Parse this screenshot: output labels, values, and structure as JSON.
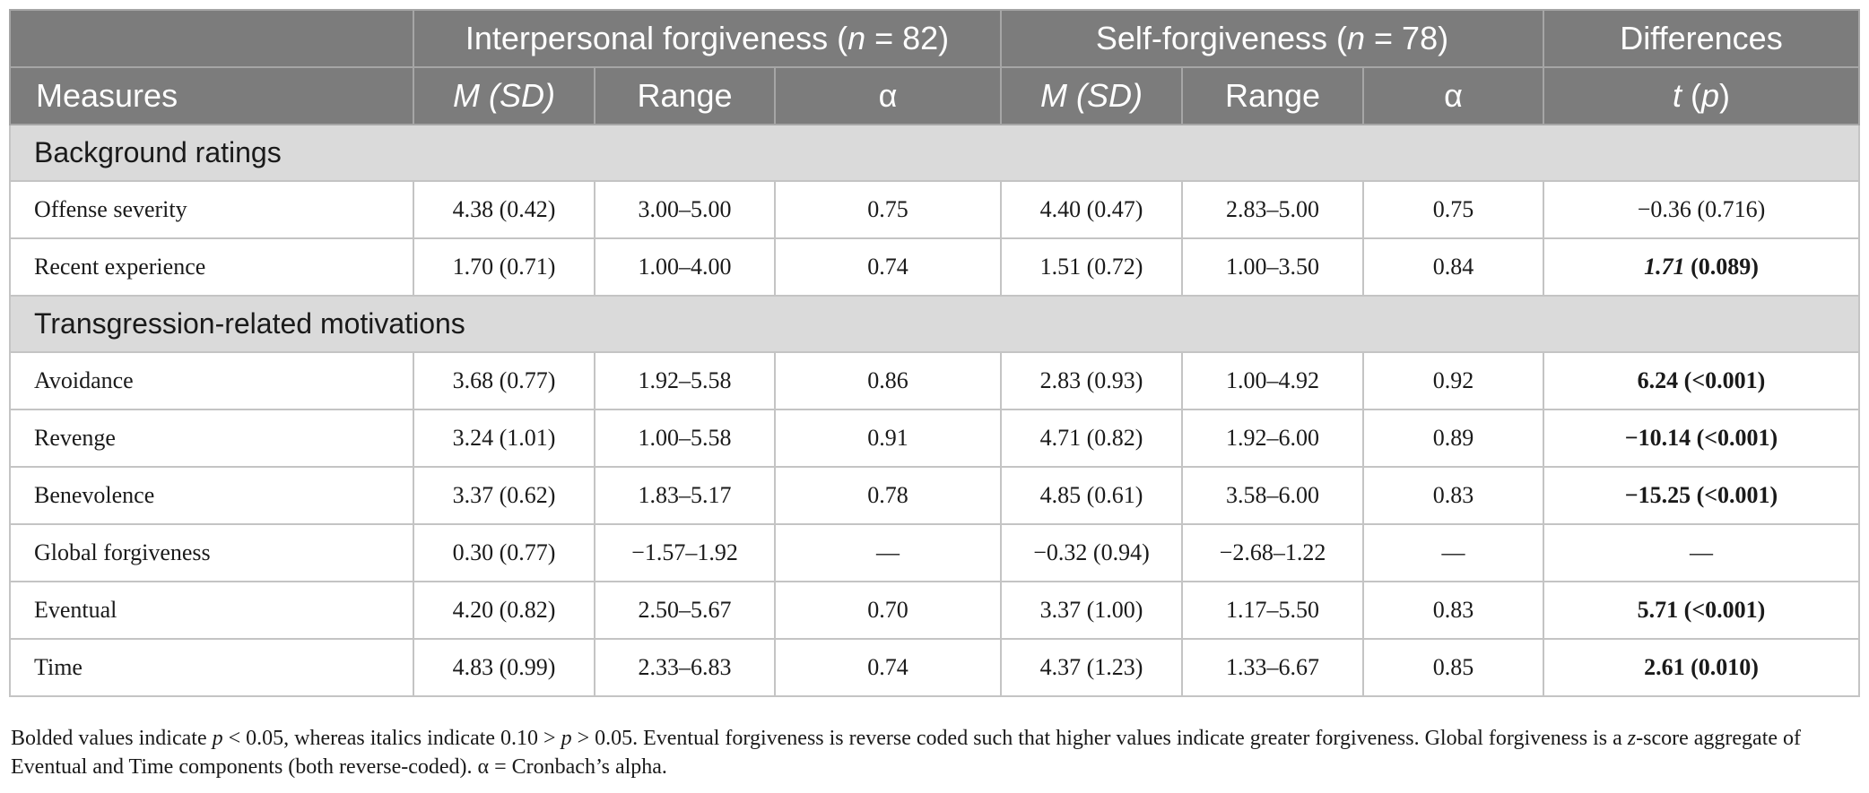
{
  "header": {
    "groups": {
      "interpersonal_prefix": "Interpersonal forgiveness (",
      "interpersonal_n": "n",
      "interpersonal_suffix": " = 82)",
      "self_prefix": "Self-forgiveness (",
      "self_n": "n",
      "self_suffix": " = 78)",
      "differences": "Differences"
    },
    "columns": {
      "measures": "Measures",
      "m_sd_1": "M (SD)",
      "range_1": "Range",
      "alpha_1": "α",
      "m_sd_2": "M (SD)",
      "range_2": "Range",
      "alpha_2": "α",
      "t": "t",
      "p_open": " (",
      "p": "p",
      "p_close": ")"
    }
  },
  "sections": [
    {
      "title": "Background ratings",
      "rows": [
        {
          "measure": "Offense severity",
          "m1": "4.38 (0.42)",
          "r1": "3.00–5.00",
          "a1": "0.75",
          "m2": "4.40 (0.47)",
          "r2": "2.83–5.00",
          "a2": "0.75",
          "t": "−0.36 (0.716)"
        },
        {
          "measure": "Recent experience",
          "m1": "1.70 (0.71)",
          "r1": "1.00–4.00",
          "a1": "0.74",
          "m2": "1.51 (0.72)",
          "r2": "1.00–3.50",
          "a2": "0.84",
          "t_italic": "1.71",
          "t_rest": " (0.089)"
        }
      ]
    },
    {
      "title": "Transgression-related motivations",
      "rows": [
        {
          "measure": "Avoidance",
          "m1": "3.68 (0.77)",
          "r1": "1.92–5.58",
          "a1": "0.86",
          "m2": "2.83 (0.93)",
          "r2": "1.00–4.92",
          "a2": "0.92",
          "t": "6.24 (<0.001)"
        },
        {
          "measure": "Revenge",
          "m1": "3.24 (1.01)",
          "r1": "1.00–5.58",
          "a1": "0.91",
          "m2": "4.71 (0.82)",
          "r2": "1.92–6.00",
          "a2": "0.89",
          "t": "−10.14 (<0.001)"
        },
        {
          "measure": "Benevolence",
          "m1": "3.37 (0.62)",
          "r1": "1.83–5.17",
          "a1": "0.78",
          "m2": "4.85 (0.61)",
          "r2": "3.58–6.00",
          "a2": "0.83",
          "t": "−15.25 (<0.001)"
        },
        {
          "measure": "Global forgiveness",
          "m1": "0.30 (0.77)",
          "r1": "−1.57–1.92",
          "a1": "—",
          "m2": "−0.32 (0.94)",
          "r2": "−2.68–1.22",
          "a2": "—",
          "t": "—"
        },
        {
          "measure": "Eventual",
          "m1": "4.20 (0.82)",
          "r1": "2.50–5.67",
          "a1": "0.70",
          "m2": "3.37 (1.00)",
          "r2": "1.17–5.50",
          "a2": "0.83",
          "t": "5.71 (<0.001)"
        },
        {
          "measure": "Time",
          "m1": "4.83 (0.99)",
          "r1": "2.33–6.83",
          "a1": "0.74",
          "m2": "4.37 (1.23)",
          "r2": "1.33–6.67",
          "a2": "0.85",
          "t": "2.61 (0.010)"
        }
      ]
    }
  ],
  "note": {
    "part1": "Bolded values indicate ",
    "p1": "p",
    "part2": " < 0.05, whereas italics indicate 0.10 > ",
    "p2": "p",
    "part3": " > 0.05. Eventual forgiveness is reverse coded such that higher values indicate greater forgiveness. Global forgiveness is a ",
    "z": "z",
    "part4": "-score aggregate of Eventual and Time components (both reverse-coded). α = Cronbach’s alpha."
  },
  "colors": {
    "header_bg": "#7c7c7c",
    "section_bg": "#dadada",
    "grid": "#c4c4c4"
  }
}
